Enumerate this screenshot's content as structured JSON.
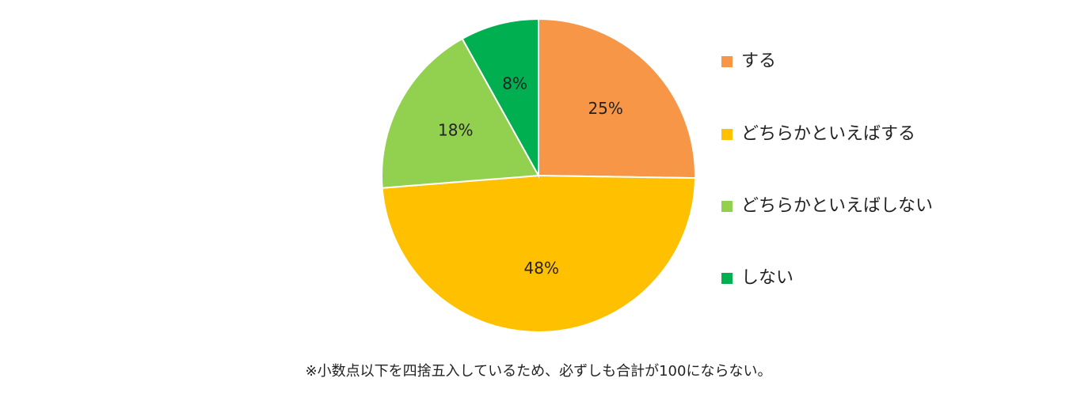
{
  "chart_data": {
    "type": "pie",
    "categories": [
      "する",
      "どちらかといえばする",
      "どちらかといえばしない",
      "しない"
    ],
    "values": [
      25,
      48,
      18,
      8
    ],
    "value_labels": [
      "25%",
      "48%",
      "18%",
      "8%"
    ],
    "colors": [
      "#f79646",
      "#ffc000",
      "#92d050",
      "#00b050"
    ],
    "note": "※小数点以下を四捨五入しているため、必ずしも合計が100にならない。"
  }
}
